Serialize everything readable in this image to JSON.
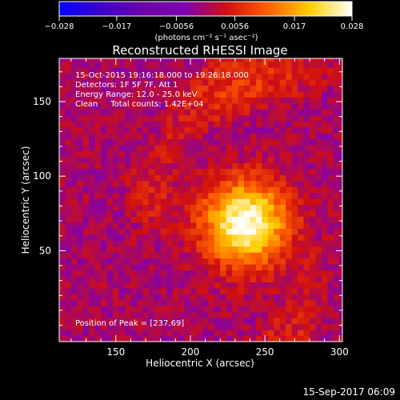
{
  "chart_data": {
    "type": "heatmap",
    "title": "Reconstructed RHESSI Image",
    "xlabel": "Heliocentric X (arcsec)",
    "ylabel": "Heliocentric Y (arcsec)",
    "xlim": [
      112,
      302
    ],
    "ylim": [
      -11,
      179
    ],
    "x_ticks": [
      150,
      200,
      250,
      300
    ],
    "y_ticks": [
      50,
      100,
      150
    ],
    "colorbar": {
      "range": [
        -0.028,
        0.028
      ],
      "tick_values": [
        -0.028,
        -0.017,
        -0.0056,
        0.0056,
        0.017,
        0.028
      ],
      "tick_labels": [
        "−0.028",
        "−0.017",
        "−0.0056",
        "0.0056",
        "0.017",
        "0.028"
      ],
      "unit_label": "(photons cm⁻² s⁻¹ asec⁻²)",
      "colormap": [
        "#0000ff",
        "#3c00c8",
        "#6a00a8",
        "#8000b0",
        "#d01010",
        "#ff6000",
        "#ffd000",
        "#ffffff"
      ]
    },
    "annotations": {
      "time": "15-Oct-2015 19:16:18.000 to 19:26:18.000",
      "detectors": "Detectors: 1F 5F 7F, Att 1",
      "energy": "Energy Range: 12.0 - 25.0 keV",
      "clean": "Clean     Total counts: 1.42E+04",
      "peak": "Position of Peak = [237,69]"
    },
    "peak_position": [
      237,
      69
    ],
    "footer_timestamp": "15-Sep-2017 06:09",
    "grid": false
  }
}
